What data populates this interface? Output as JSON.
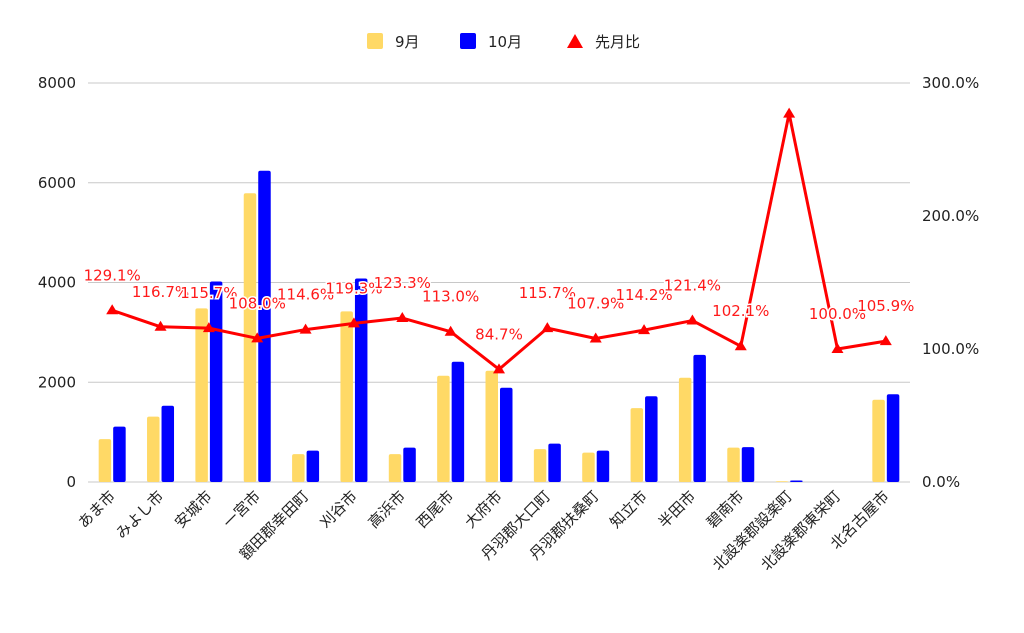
{
  "chart_data": {
    "type": "bar",
    "categories": [
      "あま市",
      "みよし市",
      "安城市",
      "一宮市",
      "額田郡幸田町",
      "刈谷市",
      "高浜市",
      "西尾市",
      "大府市",
      "丹羽郡大口町",
      "丹羽郡扶桑町",
      "知立市",
      "半田市",
      "碧南市",
      "北設楽郡設楽町",
      "北設楽郡東栄町",
      "北名古屋市"
    ],
    "series": [
      {
        "name": "9月",
        "kind": "bar",
        "axis": "left",
        "color": "#ffd966",
        "values": [
          860,
          1310,
          3480,
          5790,
          560,
          3420,
          560,
          2130,
          2230,
          660,
          590,
          1480,
          2090,
          690,
          15,
          0,
          1650
        ]
      },
      {
        "name": "10月",
        "kind": "bar",
        "axis": "left",
        "color": "#0000ff",
        "values": [
          1110,
          1530,
          4020,
          6240,
          630,
          4080,
          690,
          2410,
          1890,
          770,
          630,
          1720,
          2550,
          700,
          30,
          0,
          1760
        ]
      },
      {
        "name": "先月比",
        "kind": "line",
        "axis": "right",
        "color": "#ff0000",
        "values": [
          129.1,
          116.7,
          115.7,
          108.0,
          114.6,
          119.3,
          123.3,
          113.0,
          84.7,
          115.7,
          107.9,
          114.2,
          121.4,
          102.1,
          277.0,
          100.0,
          105.9
        ],
        "labels": [
          "129.1%",
          "116.7%",
          "115.7%",
          "108.0%",
          "114.6%",
          "119.3%",
          "123.3%",
          "113.0%",
          "84.7%",
          "115.7%",
          "107.9%",
          "114.2%",
          "121.4%",
          "102.1%",
          "",
          "100.0%",
          "105.9%"
        ]
      }
    ],
    "y_left": {
      "min": 0,
      "max": 8000,
      "ticks": [
        "0",
        "2000",
        "4000",
        "6000",
        "8000"
      ]
    },
    "y_right": {
      "min": 0,
      "max": 300,
      "ticks": [
        "0.0%",
        "100.0%",
        "200.0%",
        "300.0%"
      ]
    },
    "legend_position": "top",
    "grid": true
  }
}
